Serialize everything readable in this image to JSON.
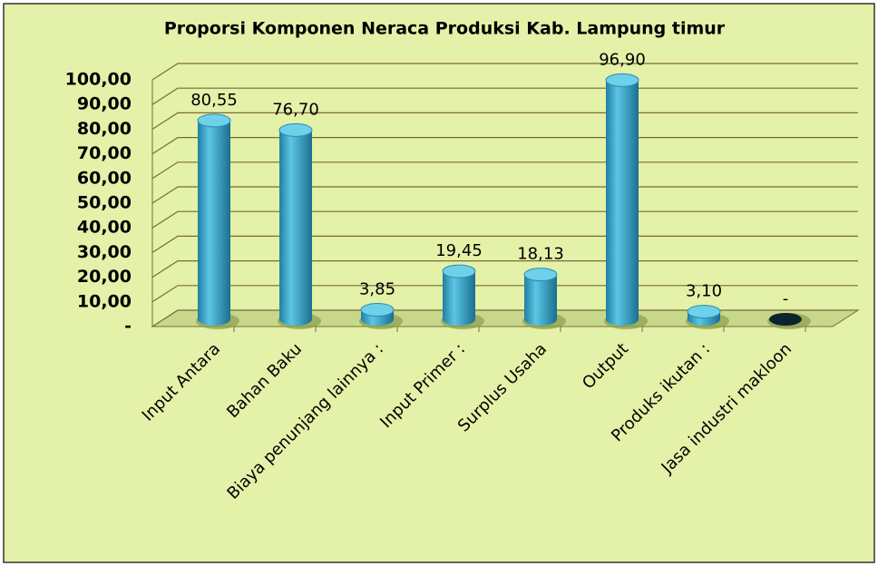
{
  "chart_data": {
    "type": "bar",
    "title": "Proporsi Komponen Neraca Produksi Kab. Lampung timur",
    "categories": [
      "Input Antara",
      "Bahan Baku",
      "Biaya penunjang lainnya :",
      "Input Primer :",
      "Surplus Usaha",
      "Output",
      "Produks ikutan :",
      "Jasa industri makloon"
    ],
    "values": [
      80.55,
      76.7,
      3.85,
      19.45,
      18.13,
      96.9,
      3.1,
      0
    ],
    "value_labels": [
      "80,55",
      "76,70",
      "3,85",
      "19,45",
      "18,13",
      "96,90",
      "3,10",
      "-"
    ],
    "color": "#3aa6c8",
    "ylim": [
      0,
      100
    ],
    "yticks": [
      {
        "value": 0,
        "label": "-"
      },
      {
        "value": 10,
        "label": "10,00"
      },
      {
        "value": 20,
        "label": "20,00"
      },
      {
        "value": 30,
        "label": "30,00"
      },
      {
        "value": 40,
        "label": "40,00"
      },
      {
        "value": 50,
        "label": "50,00"
      },
      {
        "value": 60,
        "label": "60,00"
      },
      {
        "value": 70,
        "label": "70,00"
      },
      {
        "value": 80,
        "label": "80,00"
      },
      {
        "value": 90,
        "label": "90,00"
      },
      {
        "value": 100,
        "label": "100,00"
      }
    ],
    "grid": true
  }
}
